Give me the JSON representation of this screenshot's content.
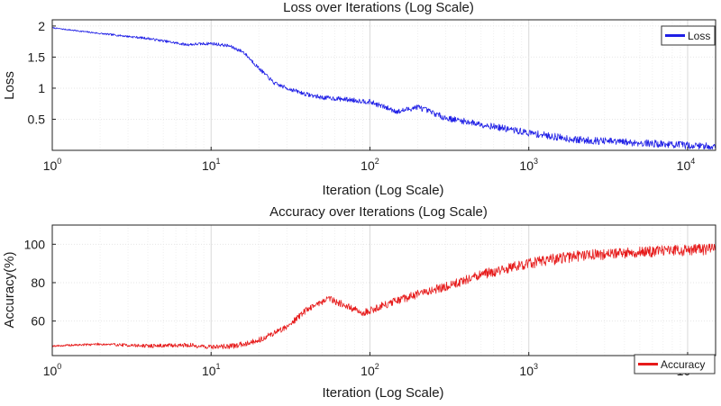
{
  "chart_data": [
    {
      "type": "line",
      "title": "Loss over Iterations (Log Scale)",
      "xlabel": "Iteration (Log Scale)",
      "ylabel": "Loss",
      "x_scale": "log",
      "xlim": [
        1,
        15000
      ],
      "ylim": [
        0,
        2.1
      ],
      "x_tick_base": "10",
      "x_tick_exponents": [
        "0",
        "1",
        "2",
        "3",
        "4"
      ],
      "yticks": [
        0.5,
        1,
        1.5,
        2
      ],
      "ytick_labels": [
        "0.5",
        "1",
        "1.5",
        "2"
      ],
      "grid": true,
      "legend_position": "top-right",
      "series": [
        {
          "name": "Loss",
          "color": "#1f1fe6",
          "x": [
            1,
            2,
            4,
            7,
            10,
            13,
            16,
            20,
            25,
            30,
            40,
            50,
            70,
            100,
            150,
            200,
            300,
            500,
            1000,
            2000,
            5000,
            10000,
            15000
          ],
          "y": [
            1.97,
            1.88,
            1.8,
            1.7,
            1.72,
            1.68,
            1.58,
            1.32,
            1.08,
            1.0,
            0.9,
            0.85,
            0.82,
            0.78,
            0.62,
            0.7,
            0.52,
            0.42,
            0.28,
            0.17,
            0.12,
            0.08,
            0.06
          ],
          "noise": 0.06
        }
      ]
    },
    {
      "type": "line",
      "title": "Accuracy over Iterations (Log Scale)",
      "xlabel": "Iteration (Log Scale)",
      "ylabel": "Accuracy(%)",
      "x_scale": "log",
      "xlim": [
        1,
        15000
      ],
      "ylim": [
        42,
        110
      ],
      "x_tick_base": "10",
      "x_tick_exponents": [
        "0",
        "1",
        "2",
        "3",
        "4"
      ],
      "yticks": [
        60,
        80,
        100
      ],
      "ytick_labels": [
        "60",
        "80",
        "100"
      ],
      "grid": true,
      "legend_position": "bottom-right",
      "series": [
        {
          "name": "Accuracy",
          "color": "#e61a1a",
          "x": [
            1,
            2,
            4,
            7,
            10,
            14,
            20,
            30,
            40,
            55,
            70,
            90,
            120,
            200,
            300,
            500,
            1000,
            2000,
            5000,
            10000,
            15000
          ],
          "y": [
            47,
            48,
            47,
            47.5,
            46.5,
            47,
            50,
            57,
            66,
            72,
            68,
            64,
            68,
            74,
            78,
            84,
            90,
            94,
            96,
            97,
            97.5
          ],
          "noise": 3.0
        }
      ]
    }
  ]
}
